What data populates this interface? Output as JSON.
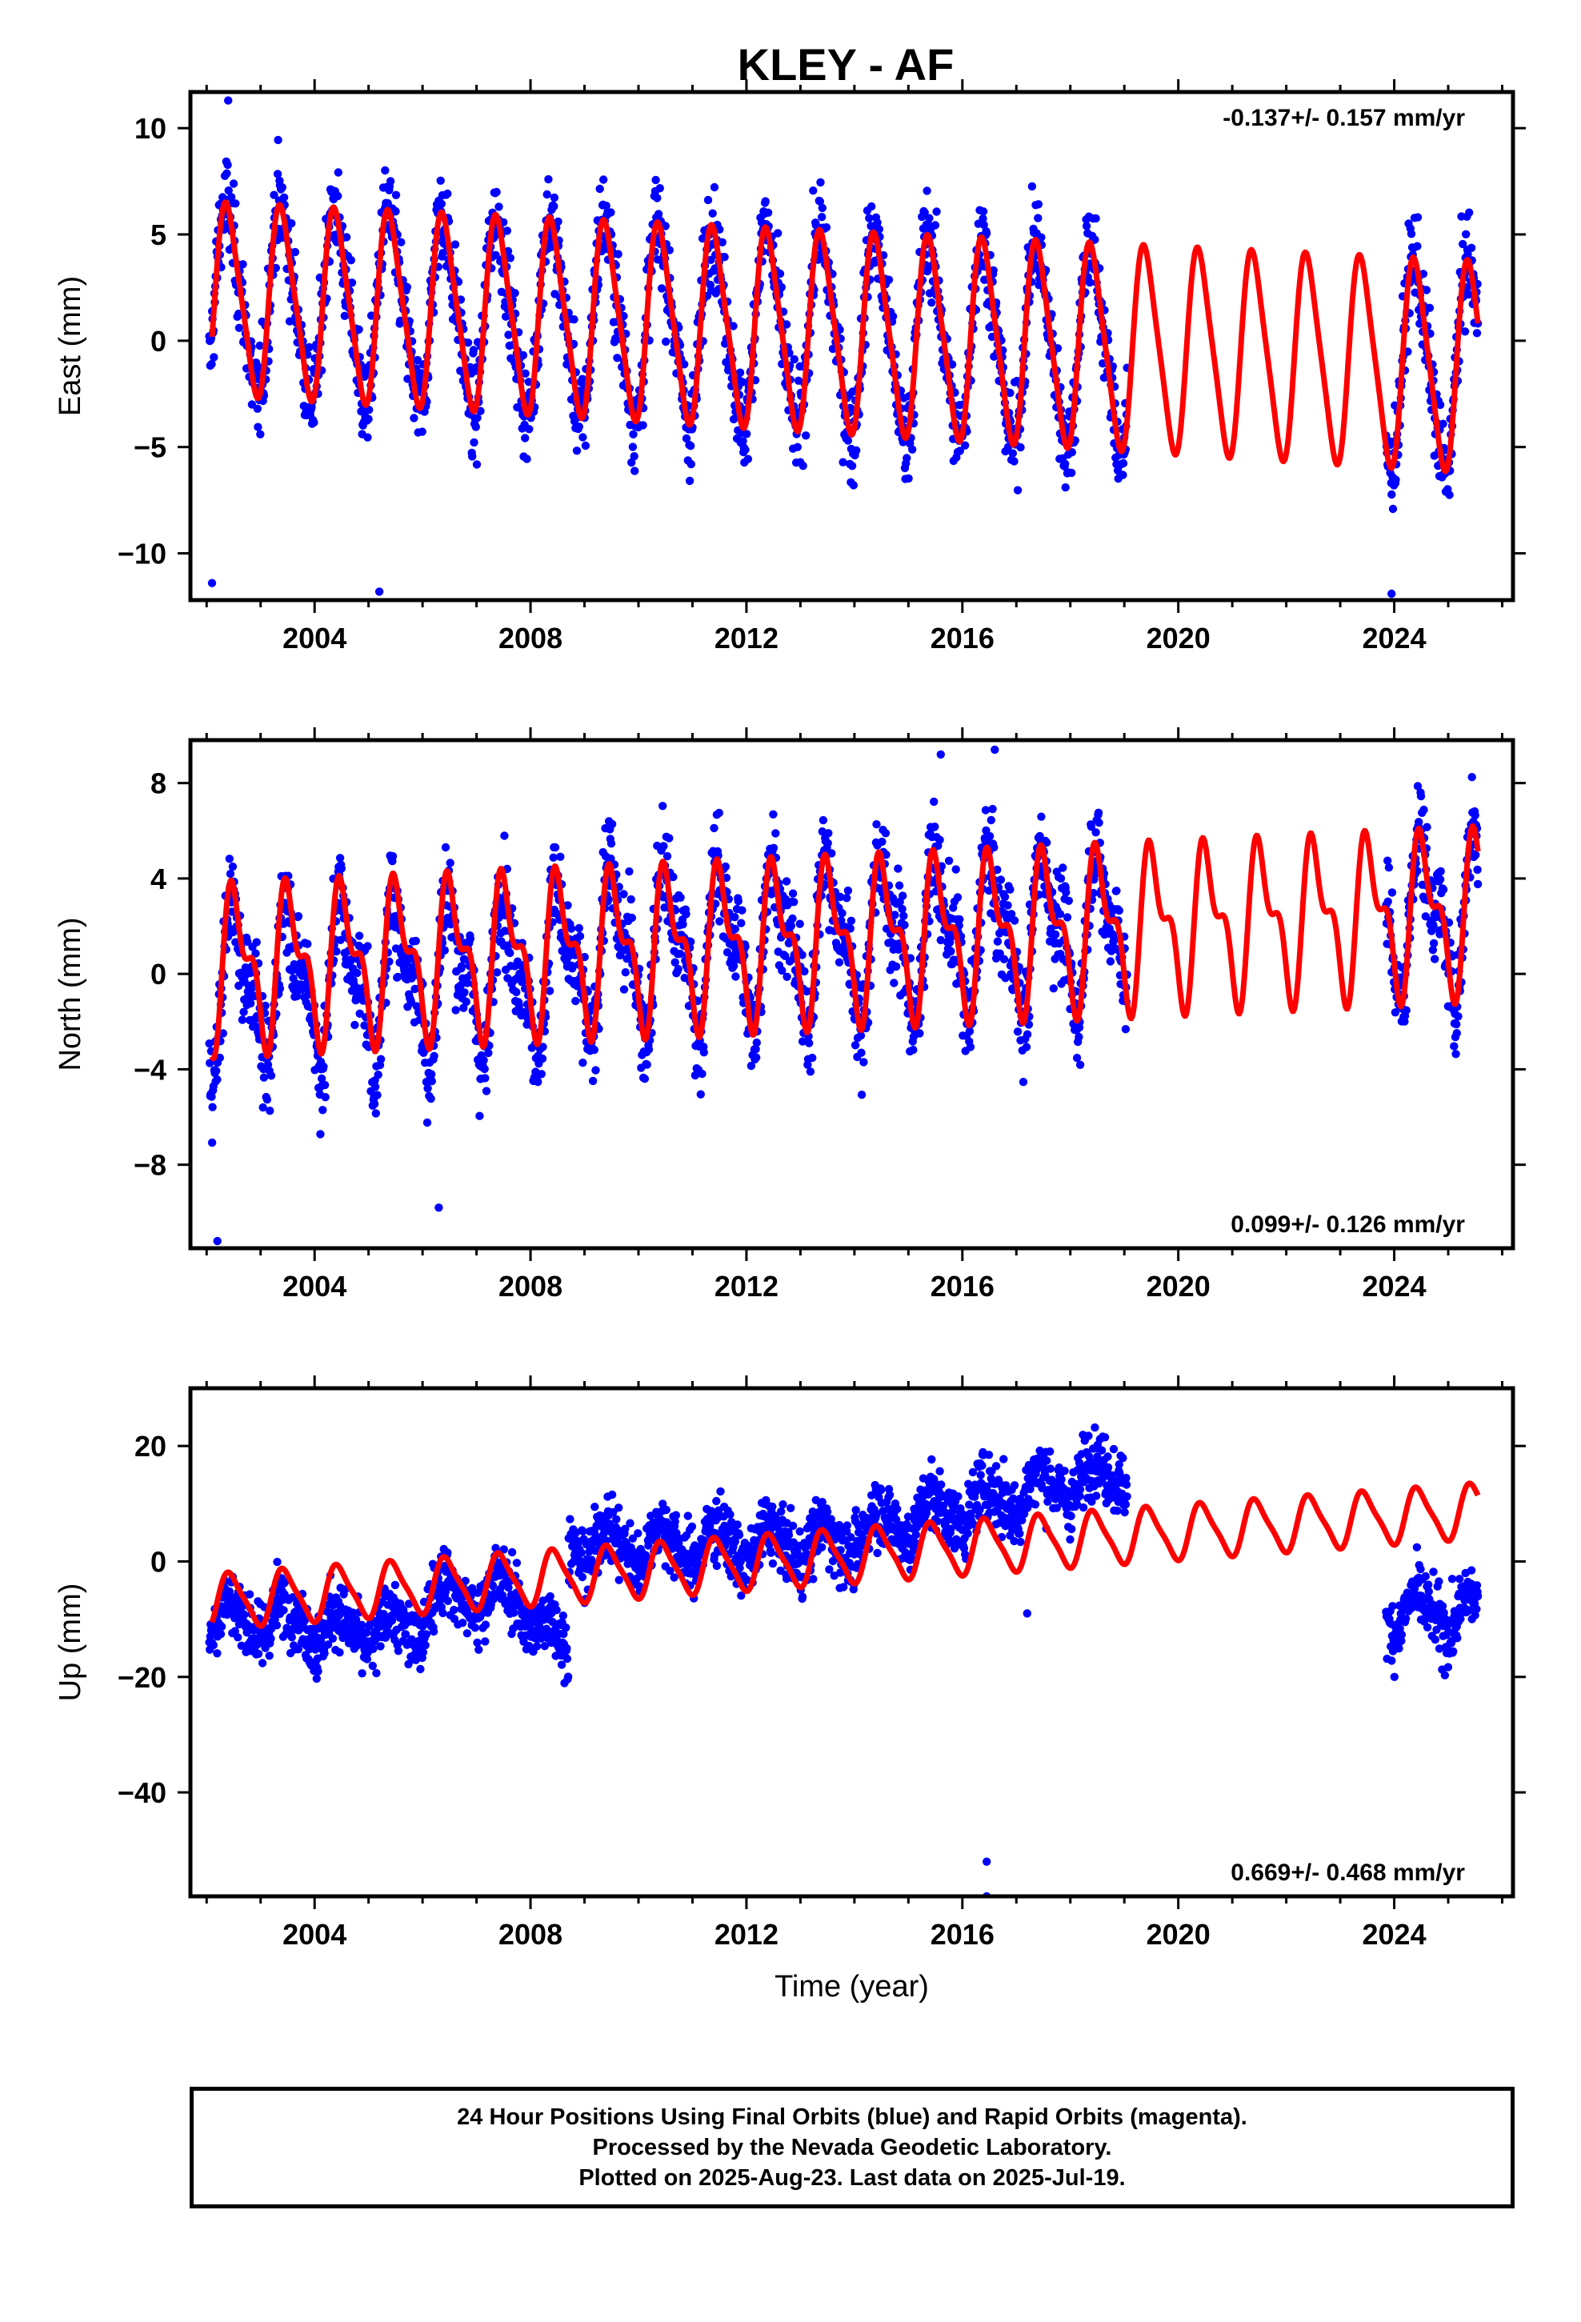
{
  "figure": {
    "title": "KLEY - AF",
    "footer_lines": [
      "24 Hour Positions Using Final Orbits (blue) and Rapid Orbits (magenta).",
      "Processed by the Nevada Geodetic Laboratory.",
      "Plotted on 2025-Aug-23. Last data on 2025-Jul-19."
    ]
  },
  "colors": {
    "observations": "#0000ff",
    "model": "#ff0000",
    "frame": "#000000"
  },
  "chart_data": [
    {
      "type": "scatter",
      "component": "East",
      "ylabel": "East (mm)",
      "xlabel": "",
      "rate_label": "-0.137+/- 0.157 mm/yr",
      "rate_position": "top-right",
      "xlim": [
        2001.7,
        2026.2
      ],
      "ylim": [
        -12.2,
        11.7
      ],
      "xticks": [
        2004,
        2008,
        2012,
        2016,
        2020,
        2024
      ],
      "yticks": [
        10,
        5,
        0,
        -5,
        -10
      ],
      "data_gap": [
        2019.05,
        2023.85
      ],
      "data_end": 2025.55,
      "grid": false,
      "series": [
        {
          "kind": "observations",
          "description_of_values": "daily positions",
          "seasonal_amplitude_start": 4.3,
          "seasonal_amplitude_end": 4.4,
          "scatter": 1.9,
          "offset": 1.9,
          "trend": -0.137
        },
        {
          "kind": "model",
          "values_range": [
            -5.2,
            6.5
          ],
          "annual_peak_month": "May"
        }
      ]
    },
    {
      "type": "scatter",
      "component": "North",
      "ylabel": "North (mm)",
      "xlabel": "",
      "rate_label": "0.099+/- 0.126 mm/yr",
      "rate_position": "bottom-right",
      "xlim": [
        2001.7,
        2026.2
      ],
      "ylim": [
        -11.5,
        9.8
      ],
      "xticks": [
        2004,
        2008,
        2012,
        2016,
        2020,
        2024
      ],
      "yticks": [
        8,
        4,
        0,
        -4,
        -8
      ],
      "data_gap": [
        2019.05,
        2023.85
      ],
      "data_end": 2025.55,
      "grid": false,
      "series": [
        {
          "kind": "observations",
          "description_of_values": "daily positions"
        },
        {
          "kind": "model",
          "values_range": [
            -2.7,
            5.7
          ],
          "annual_peak_month": "Jul"
        }
      ]
    },
    {
      "type": "scatter",
      "component": "Up",
      "ylabel": "Up (mm)",
      "xlabel": "Time (year)",
      "rate_label": "0.669+/- 0.468 mm/yr",
      "rate_position": "bottom-right",
      "xlim": [
        2001.7,
        2026.2
      ],
      "ylim": [
        -58,
        30
      ],
      "xticks": [
        2004,
        2008,
        2012,
        2016,
        2020,
        2024
      ],
      "yticks": [
        20,
        0,
        -20,
        -40
      ],
      "data_gap": [
        2019.05,
        2023.85
      ],
      "data_end": 2025.55,
      "grid": false,
      "series": [
        {
          "kind": "observations",
          "description_of_values": "daily positions"
        },
        {
          "kind": "model",
          "values_range": [
            -11,
            12.5
          ],
          "annual_peak_month": "Jun"
        }
      ]
    }
  ]
}
